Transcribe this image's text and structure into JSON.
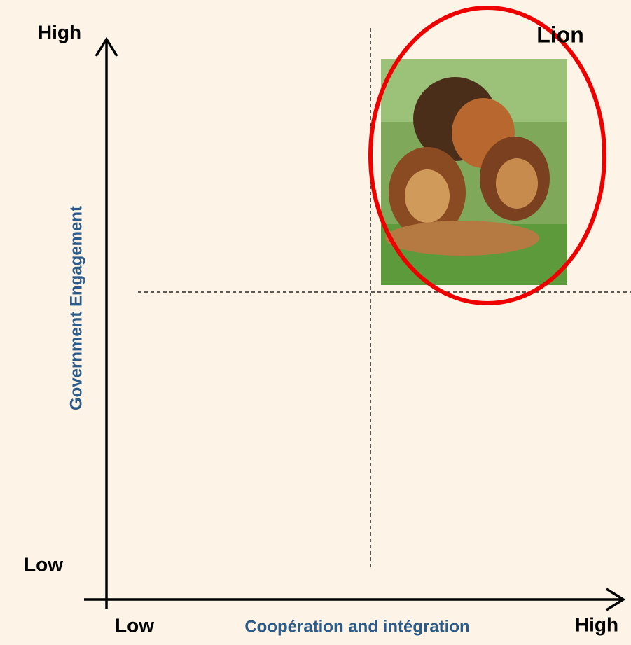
{
  "y_axis": {
    "label": "Government Engagement",
    "high": "High",
    "low": "Low"
  },
  "x_axis": {
    "label": "Coopération and intégration",
    "low": "Low",
    "high": "High"
  },
  "quadrant": {
    "label": "Lion"
  }
}
